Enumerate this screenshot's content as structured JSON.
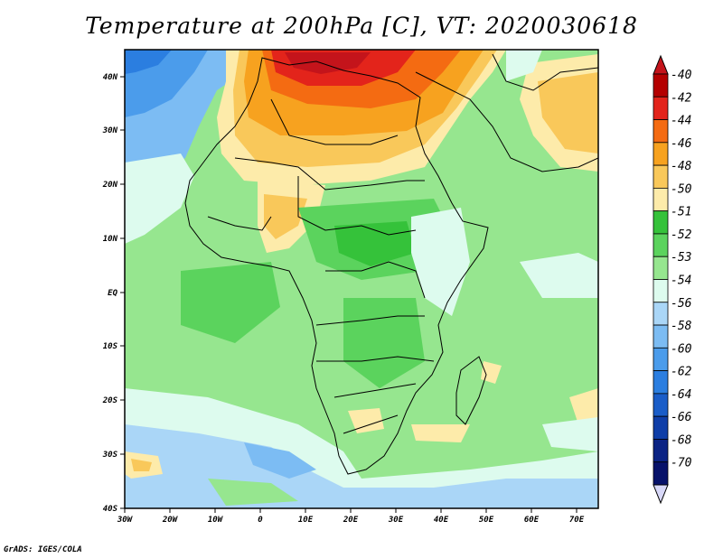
{
  "title": "Temperature at 200hPa [C], VT: 2020030618",
  "credit": "GrADS: IGES/COLA",
  "map": {
    "lat_labels": [
      "40N",
      "30N",
      "20N",
      "10N",
      "EQ",
      "10S",
      "20S",
      "30S",
      "40S"
    ],
    "lon_labels": [
      "30W",
      "20W",
      "10W",
      "0",
      "10E",
      "20E",
      "30E",
      "40E",
      "50E",
      "60E",
      "70E"
    ]
  },
  "colorbar": {
    "levels": [
      {
        "label": "-40",
        "color": "#b40000"
      },
      {
        "label": "-42",
        "color": "#e3241b"
      },
      {
        "label": "-44",
        "color": "#f46b12"
      },
      {
        "label": "-46",
        "color": "#f7a21f"
      },
      {
        "label": "-48",
        "color": "#f9c85a"
      },
      {
        "label": "-50",
        "color": "#fdebaa"
      },
      {
        "label": "-51",
        "color": "#35c23a"
      },
      {
        "label": "-52",
        "color": "#5bd35d"
      },
      {
        "label": "-53",
        "color": "#96e68f"
      },
      {
        "label": "-54",
        "color": "#ddfbee"
      },
      {
        "label": "-56",
        "color": "#aad6f7"
      },
      {
        "label": "-58",
        "color": "#7cbcf3"
      },
      {
        "label": "-60",
        "color": "#4b9ceb"
      },
      {
        "label": "-62",
        "color": "#2b7ee0"
      },
      {
        "label": "-64",
        "color": "#1a5dc8"
      },
      {
        "label": "-66",
        "color": "#0f3ea8"
      },
      {
        "label": "-68",
        "color": "#0b2384"
      },
      {
        "label": "-70",
        "color": "#07126a"
      }
    ],
    "top_arrow_color": "#c4141b",
    "bottom_arrow_color": "#d8d8f8"
  }
}
